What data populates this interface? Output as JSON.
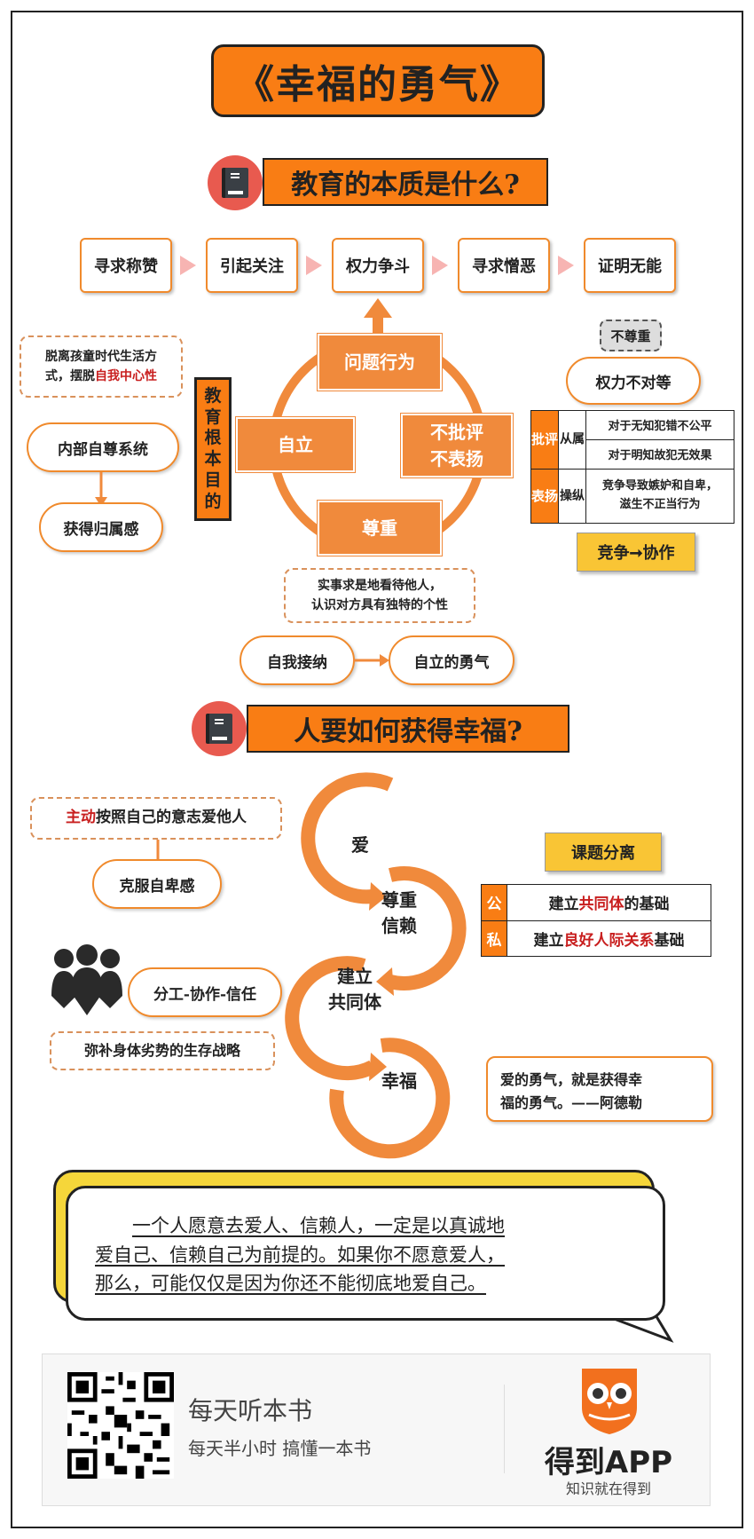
{
  "title": "《幸福的勇气》",
  "section1": {
    "header": "教育的本质是什么?",
    "steps": [
      "寻求称赞",
      "引起关注",
      "权力争斗",
      "寻求憎恶",
      "证明无能"
    ],
    "cycle": {
      "top": "问题行为",
      "left": "自立",
      "right_line1": "不批评",
      "right_line2": "不表扬",
      "bottom": "尊重"
    },
    "purpose_chars": [
      "教",
      "育",
      "根",
      "本",
      "目",
      "的"
    ],
    "left_dashed_line1": "脱离孩童时代生活方",
    "left_dashed_line2_prefix": "式，摆脱",
    "left_dashed_line2_highlight": "自我中心性",
    "inner_self": "内部自尊系统",
    "belonging": "获得归属感",
    "respect_note_line1": "实事求是地看待他人，",
    "respect_note_line2": "认识对方具有独特的个性",
    "self_accept": "自我接纳",
    "self_courage": "自立的勇气",
    "no_respect_tag": "不尊重",
    "power_unequal": "权力不对等",
    "table": {
      "criticize": "批评",
      "praise": "表扬",
      "subordinate": "从属",
      "manipulate": "操纵",
      "row1": "对于无知犯错不公平",
      "row2": "对于明知故犯无效果",
      "row3_line1": "竞争导致嫉妒和自卑，",
      "row3_line2": "滋生不正当行为"
    },
    "compete": "竞争➞协作"
  },
  "section2": {
    "header": "人要如何获得幸福?",
    "active_prefix": "主动",
    "active_rest": "按照自己的意志爱他人",
    "overcome": "克服自卑感",
    "division": "分工-协作-信任",
    "survival": "弥补身体劣势的生存战略",
    "chain": {
      "love": "爱",
      "respect_line1": "尊重",
      "respect_line2": "信赖",
      "build_line1": "建立",
      "build_line2": "共同体",
      "happy": "幸福"
    },
    "task_sep": "课题分离",
    "public_tag": "公",
    "private_tag": "私",
    "public_prefix": "建立",
    "public_highlight": "共同体",
    "public_suffix": "的基础",
    "private_prefix": "建立",
    "private_highlight": "良好人际关系",
    "private_suffix": "基础",
    "quote_line1": "爱的勇气，就是获得幸",
    "quote_line2": "福的勇气。——阿德勒"
  },
  "bubble": {
    "line1": "一个人愿意去爱人、信赖人，一定是以真诚地",
    "line2": "爱自己、信赖自己为前提的。如果你不愿意爱人，",
    "line3": "那么，可能仅仅是因为你还不能彻底地爱自己。"
  },
  "footer": {
    "line1": "每天听本书",
    "line2": "每天半小时  搞懂一本书",
    "brand": "得到APP",
    "slogan": "知识就在得到"
  },
  "colors": {
    "orange": "#f97d14",
    "node": "#f08a3c",
    "yellow": "#f9c535",
    "red": "#c81e1e",
    "pink_arrow": "#f7b4b2"
  }
}
